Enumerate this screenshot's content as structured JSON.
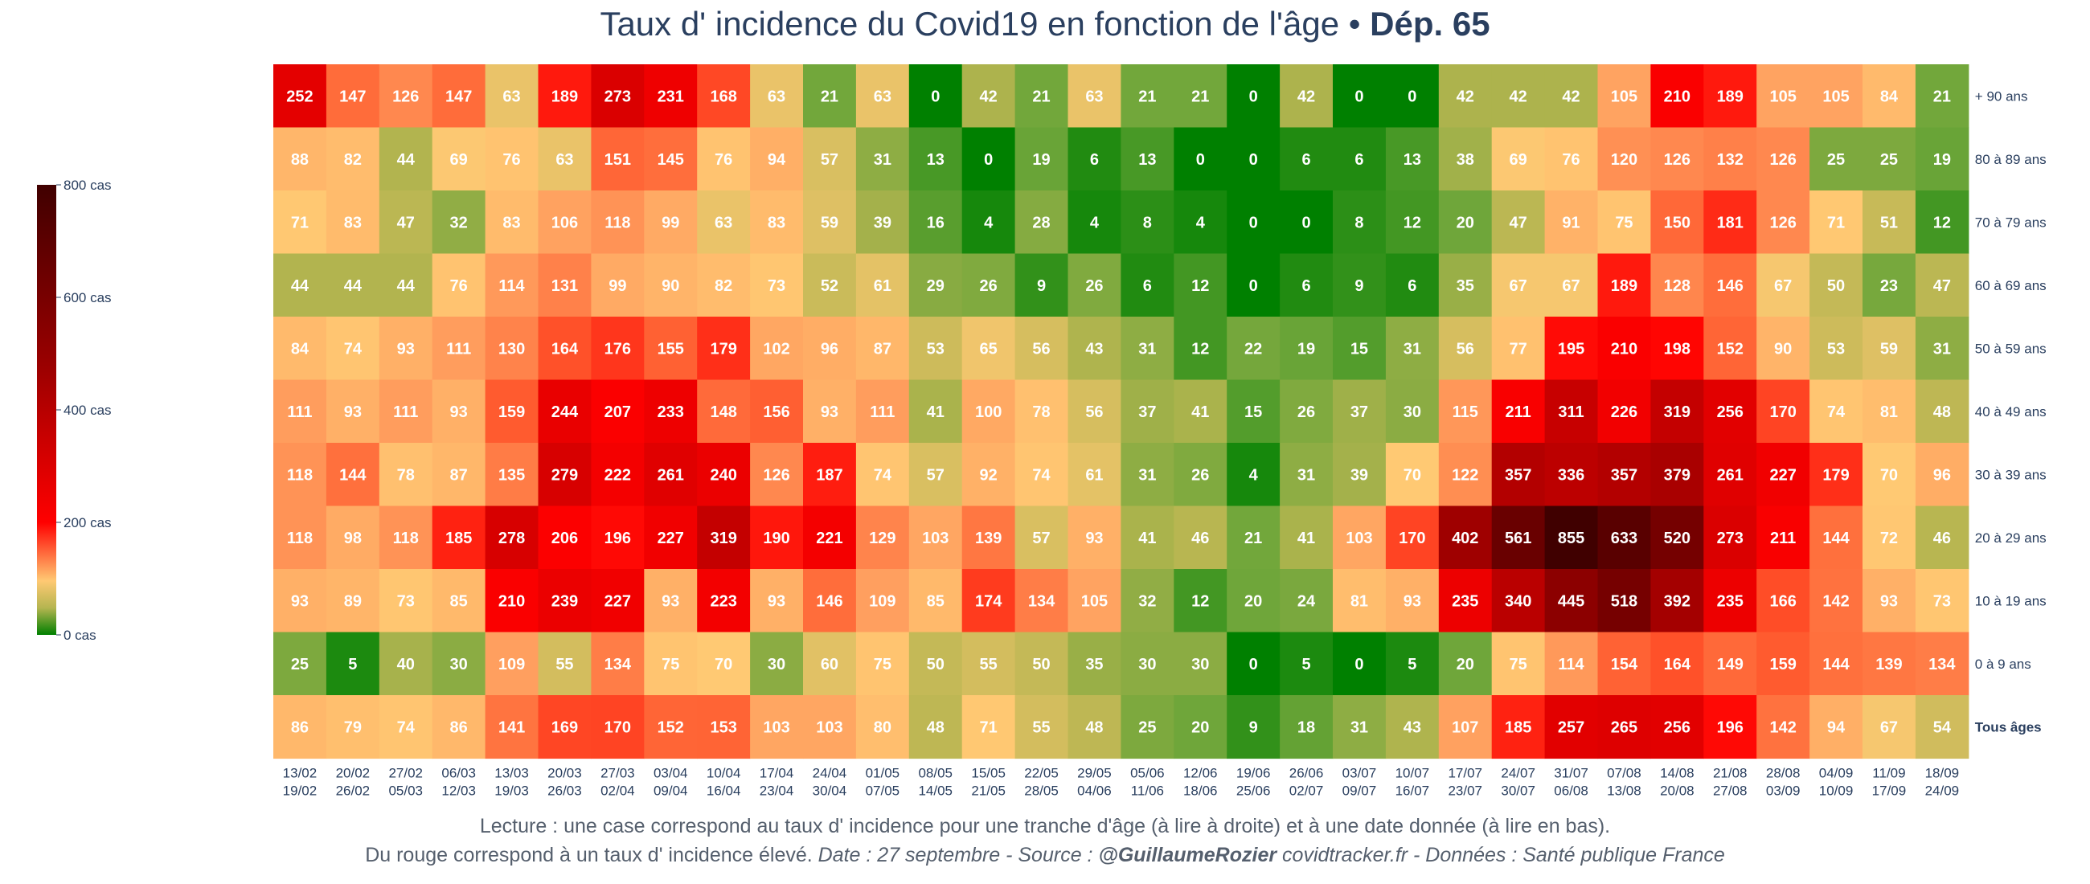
{
  "title": {
    "main": "Taux d' incidence du Covid19 en fonction de l'âge • ",
    "bold": "Dép. 65"
  },
  "footer": {
    "line1": "Lecture : une case correspond au taux d' incidence pour une tranche d'âge (à lire à droite) et à une date donnée (à lire en bas).",
    "line2_a": "Du rouge correspond à un taux d' incidence élevé.  ",
    "line2_b": "Date : 27 septembre - Source : ",
    "line2_author": "@GuillaumeRozier",
    "line2_c": " covidtracker.fr - Données : Santé publique France"
  },
  "colors": {
    "low": "#008000",
    "mid": "#ffc973",
    "high": "#ff0000",
    "max": "#400000",
    "text": "#2a3f5f"
  },
  "chart_data": {
    "type": "heatmap",
    "title": "Taux d' incidence du Covid19 en fonction de l'âge • Dép. 65",
    "zlim": [
      0,
      800
    ],
    "colorbar": {
      "ticks": [
        0,
        200,
        400,
        600,
        800
      ],
      "tick_labels": [
        "0 cas",
        "200 cas",
        "400 cas",
        "600 cas",
        "800 cas"
      ]
    },
    "x_labels": [
      [
        "13/02",
        "19/02"
      ],
      [
        "20/02",
        "26/02"
      ],
      [
        "27/02",
        "05/03"
      ],
      [
        "06/03",
        "12/03"
      ],
      [
        "13/03",
        "19/03"
      ],
      [
        "20/03",
        "26/03"
      ],
      [
        "27/03",
        "02/04"
      ],
      [
        "03/04",
        "09/04"
      ],
      [
        "10/04",
        "16/04"
      ],
      [
        "17/04",
        "23/04"
      ],
      [
        "24/04",
        "30/04"
      ],
      [
        "01/05",
        "07/05"
      ],
      [
        "08/05",
        "14/05"
      ],
      [
        "15/05",
        "21/05"
      ],
      [
        "22/05",
        "28/05"
      ],
      [
        "29/05",
        "04/06"
      ],
      [
        "05/06",
        "11/06"
      ],
      [
        "12/06",
        "18/06"
      ],
      [
        "19/06",
        "25/06"
      ],
      [
        "26/06",
        "02/07"
      ],
      [
        "03/07",
        "09/07"
      ],
      [
        "10/07",
        "16/07"
      ],
      [
        "17/07",
        "23/07"
      ],
      [
        "24/07",
        "30/07"
      ],
      [
        "31/07",
        "06/08"
      ],
      [
        "07/08",
        "13/08"
      ],
      [
        "14/08",
        "20/08"
      ],
      [
        "21/08",
        "27/08"
      ],
      [
        "28/08",
        "03/09"
      ],
      [
        "04/09",
        "10/09"
      ],
      [
        "11/09",
        "17/09"
      ],
      [
        "18/09",
        "24/09"
      ]
    ],
    "rows": [
      {
        "label": "+ 90 ans",
        "bold": false,
        "values": [
          252,
          147,
          126,
          147,
          63,
          189,
          273,
          231,
          168,
          63,
          21,
          63,
          0,
          42,
          21,
          63,
          21,
          21,
          0,
          42,
          0,
          0,
          42,
          42,
          42,
          105,
          210,
          189,
          105,
          105,
          84,
          21
        ]
      },
      {
        "label": "80 à 89 ans",
        "bold": false,
        "values": [
          88,
          82,
          44,
          69,
          76,
          63,
          151,
          145,
          76,
          94,
          57,
          31,
          13,
          0,
          19,
          6,
          13,
          0,
          0,
          6,
          6,
          13,
          38,
          69,
          76,
          120,
          126,
          132,
          126,
          25,
          25,
          19
        ]
      },
      {
        "label": "70 à 79 ans",
        "bold": false,
        "values": [
          71,
          83,
          47,
          32,
          83,
          106,
          118,
          99,
          63,
          83,
          59,
          39,
          16,
          4,
          28,
          4,
          8,
          4,
          0,
          0,
          8,
          12,
          20,
          47,
          91,
          75,
          150,
          181,
          126,
          71,
          51,
          12
        ]
      },
      {
        "label": "60 à 69 ans",
        "bold": false,
        "values": [
          44,
          44,
          44,
          76,
          114,
          131,
          99,
          90,
          82,
          73,
          52,
          61,
          29,
          26,
          9,
          26,
          6,
          12,
          0,
          6,
          9,
          6,
          35,
          67,
          67,
          189,
          128,
          146,
          67,
          50,
          23,
          47
        ]
      },
      {
        "label": "50 à 59 ans",
        "bold": false,
        "values": [
          84,
          74,
          93,
          111,
          130,
          164,
          176,
          155,
          179,
          102,
          96,
          87,
          53,
          65,
          56,
          43,
          31,
          12,
          22,
          19,
          15,
          31,
          56,
          77,
          195,
          210,
          198,
          152,
          90,
          53,
          59,
          31
        ]
      },
      {
        "label": "40 à 49 ans",
        "bold": false,
        "values": [
          111,
          93,
          111,
          93,
          159,
          244,
          207,
          233,
          148,
          156,
          93,
          111,
          41,
          100,
          78,
          56,
          37,
          41,
          15,
          26,
          37,
          30,
          115,
          211,
          311,
          226,
          319,
          256,
          170,
          74,
          81,
          48
        ]
      },
      {
        "label": "30 à 39 ans",
        "bold": false,
        "values": [
          118,
          144,
          78,
          87,
          135,
          279,
          222,
          261,
          240,
          126,
          187,
          74,
          57,
          92,
          74,
          61,
          31,
          26,
          4,
          31,
          39,
          70,
          122,
          357,
          336,
          357,
          379,
          261,
          227,
          179,
          70,
          96
        ]
      },
      {
        "label": "20 à 29 ans",
        "bold": false,
        "values": [
          118,
          98,
          118,
          185,
          278,
          206,
          196,
          227,
          319,
          190,
          221,
          129,
          103,
          139,
          57,
          93,
          41,
          46,
          21,
          41,
          103,
          170,
          402,
          561,
          855,
          633,
          520,
          273,
          211,
          144,
          72,
          46
        ]
      },
      {
        "label": "10 à 19 ans",
        "bold": false,
        "values": [
          93,
          89,
          73,
          85,
          210,
          239,
          227,
          93,
          223,
          93,
          146,
          109,
          85,
          174,
          134,
          105,
          32,
          12,
          20,
          24,
          81,
          93,
          235,
          340,
          445,
          518,
          392,
          235,
          166,
          142,
          93,
          73
        ]
      },
      {
        "label": "0 à 9 ans",
        "bold": false,
        "values": [
          25,
          5,
          40,
          30,
          109,
          55,
          134,
          75,
          70,
          30,
          60,
          75,
          50,
          55,
          50,
          35,
          30,
          30,
          0,
          5,
          0,
          5,
          20,
          75,
          114,
          154,
          164,
          149,
          159,
          144,
          139,
          134
        ]
      },
      {
        "label": "Tous âges",
        "bold": true,
        "values": [
          86,
          79,
          74,
          86,
          141,
          169,
          170,
          152,
          153,
          103,
          103,
          80,
          48,
          71,
          55,
          48,
          25,
          20,
          9,
          18,
          31,
          43,
          107,
          185,
          257,
          265,
          256,
          196,
          142,
          94,
          67,
          54
        ]
      }
    ]
  }
}
